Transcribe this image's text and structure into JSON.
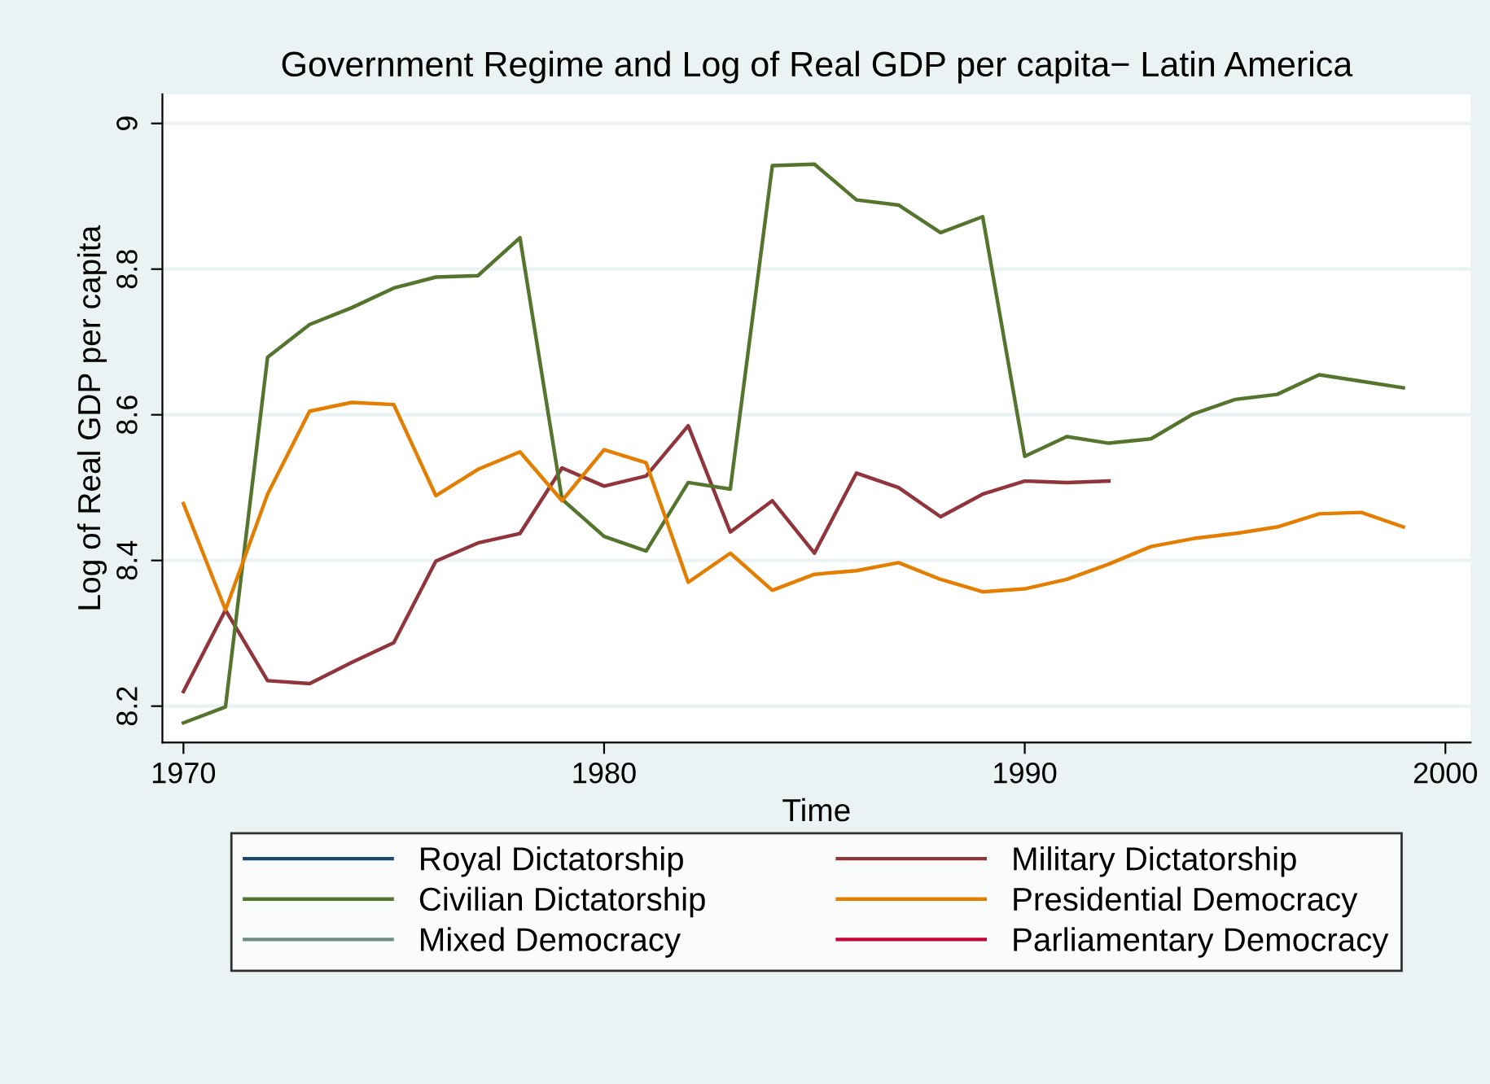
{
  "chart_data": {
    "type": "line",
    "title": "Government Regime and Log of Real GDP per capita− Latin America",
    "xlabel": "Time",
    "ylabel": "Log of Real GDP per capita",
    "x": [
      1970,
      1971,
      1972,
      1973,
      1974,
      1975,
      1976,
      1977,
      1978,
      1979,
      1980,
      1981,
      1982,
      1983,
      1984,
      1985,
      1986,
      1987,
      1988,
      1989,
      1990,
      1991,
      1992,
      1993,
      1994,
      1995,
      1996,
      1997,
      1998,
      1999
    ],
    "series": [
      {
        "name": "Royal Dictatorship",
        "color": "#1a476f",
        "values": [
          null,
          null,
          null,
          null,
          null,
          null,
          null,
          null,
          null,
          null,
          null,
          null,
          null,
          null,
          null,
          null,
          null,
          null,
          null,
          null,
          null,
          null,
          null,
          null,
          null,
          null,
          null,
          null,
          null,
          null
        ]
      },
      {
        "name": "Military Dictatorship",
        "color": "#90353b",
        "values": [
          8.22,
          8.332,
          8.235,
          8.231,
          8.26,
          8.287,
          8.399,
          8.424,
          8.437,
          8.527,
          8.502,
          8.516,
          8.585,
          8.439,
          8.482,
          8.41,
          8.52,
          8.5,
          8.46,
          8.491,
          8.509,
          8.507,
          8.509,
          null,
          null,
          null,
          null,
          null,
          null,
          null
        ]
      },
      {
        "name": "Civilian Dictatorship",
        "color": "#55752f",
        "values": [
          8.177,
          8.199,
          8.679,
          8.724,
          8.747,
          8.774,
          8.789,
          8.791,
          8.843,
          8.484,
          8.433,
          8.413,
          8.507,
          8.498,
          8.942,
          8.944,
          8.895,
          8.888,
          8.85,
          8.872,
          8.543,
          8.57,
          8.561,
          8.567,
          8.601,
          8.621,
          8.628,
          8.655,
          8.646,
          8.637
        ]
      },
      {
        "name": "Presidential Democracy",
        "color": "#e37e00",
        "values": [
          8.478,
          8.332,
          8.491,
          8.605,
          8.617,
          8.614,
          8.489,
          8.525,
          8.549,
          8.482,
          8.552,
          8.534,
          8.37,
          8.41,
          8.359,
          8.381,
          8.386,
          8.397,
          8.374,
          8.357,
          8.361,
          8.374,
          8.395,
          8.419,
          8.43,
          8.437,
          8.446,
          8.464,
          8.466,
          8.446
        ]
      },
      {
        "name": "Mixed Democracy",
        "color": "#6e8e84",
        "values": [
          null,
          null,
          null,
          null,
          null,
          null,
          null,
          null,
          null,
          null,
          null,
          null,
          null,
          null,
          null,
          null,
          null,
          null,
          null,
          null,
          null,
          null,
          null,
          null,
          null,
          null,
          null,
          null,
          null,
          null
        ]
      },
      {
        "name": "Parliamentary Democracy",
        "color": "#c10534",
        "values": [
          null,
          null,
          null,
          null,
          null,
          null,
          null,
          null,
          null,
          null,
          null,
          null,
          null,
          null,
          null,
          null,
          null,
          null,
          null,
          null,
          null,
          null,
          null,
          null,
          null,
          null,
          null,
          null,
          null,
          null
        ]
      }
    ],
    "xlim": [
      1969.5,
      2000.6
    ],
    "xticks": [
      1970,
      1980,
      1990,
      2000
    ],
    "ylim": [
      8.15,
      9.04
    ],
    "yticks": [
      8.2,
      8.4,
      8.6,
      8.8,
      9
    ],
    "grid": "y",
    "legend": "bottom",
    "marker": "none",
    "line_style": "solid"
  }
}
